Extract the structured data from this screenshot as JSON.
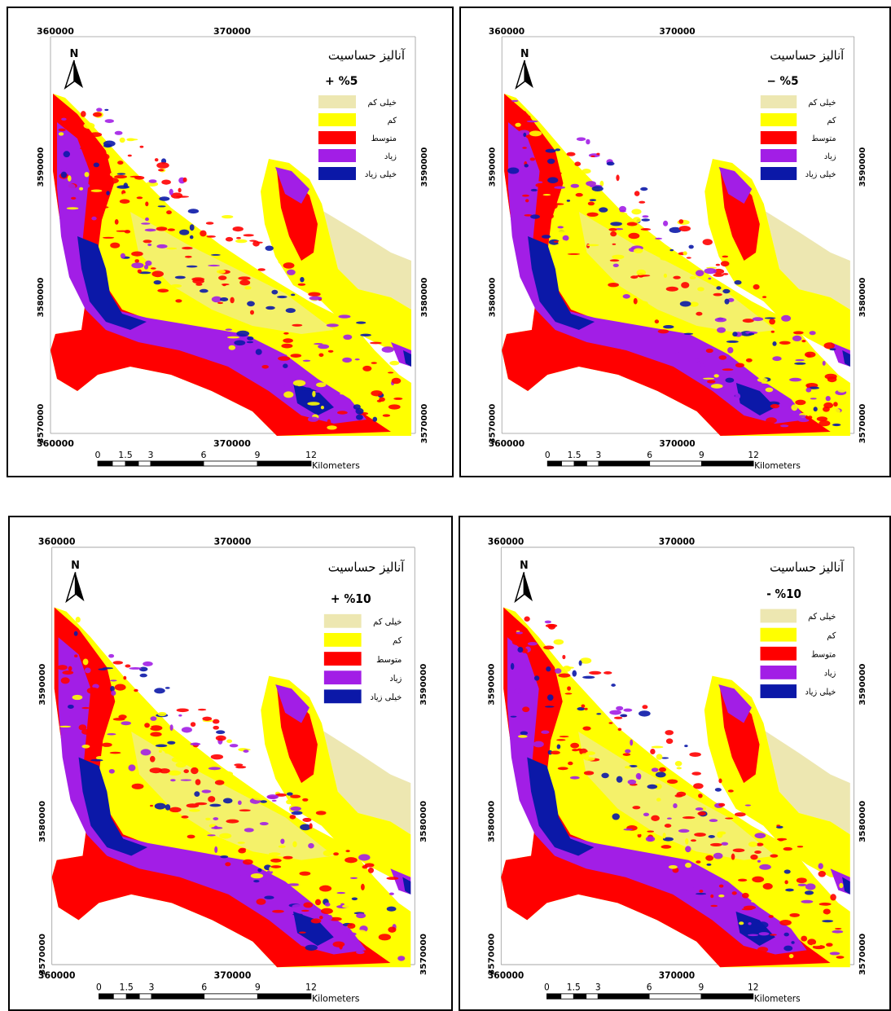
{
  "legend_title": "آنالیز حساسیت",
  "legend_classes": [
    {
      "label": "خیلی کم",
      "color": "#ede7b1"
    },
    {
      "label": "کم",
      "color": "#ffff00"
    },
    {
      "label": "متوسط",
      "color": "#ff0000"
    },
    {
      "label": "زیاد",
      "color": "#a21ee6"
    },
    {
      "label": "خیلی زیاد",
      "color": "#0b18a8"
    }
  ],
  "north_label": "N",
  "x_ticks": [
    "360000",
    "370000"
  ],
  "y_ticks": [
    "3590000",
    "3580000",
    "3570000"
  ],
  "scalebar": {
    "ticks": [
      "0",
      "1.5",
      "3",
      "6",
      "9",
      "12"
    ],
    "unit": "Kilometers"
  },
  "panels": [
    {
      "id": "p5",
      "variation": "+ %5"
    },
    {
      "id": "m5",
      "variation": "− %5"
    },
    {
      "id": "p10",
      "variation": "+ %10"
    },
    {
      "id": "m10",
      "variation": "- %10"
    }
  ]
}
